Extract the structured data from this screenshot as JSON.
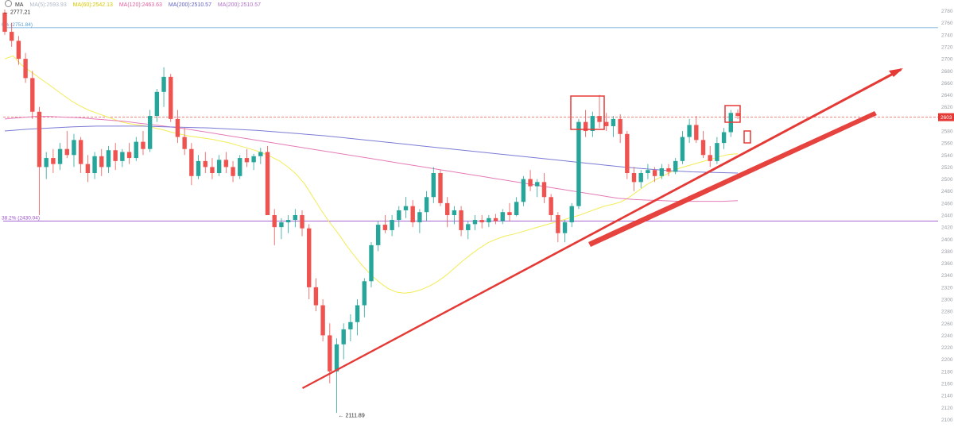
{
  "legend": {
    "indicator": "MA",
    "items": [
      {
        "text": "MA(5):2593.93",
        "color": "#b0b8c8"
      },
      {
        "text": "MA(60):2542.13",
        "color": "#f0e020"
      },
      {
        "text": "MA(120):2463.63",
        "color": "#e060a0"
      },
      {
        "text": "MA(200):2510.57",
        "color": "#6060c0"
      },
      {
        "text": "MA(200):2510.57",
        "color": "#b070c8"
      }
    ]
  },
  "colors": {
    "up": "#26a69a",
    "down": "#ef5350",
    "trendline": "#e53935",
    "ma_yellow": "#f2ec55",
    "ma_pink": "#e57bb8",
    "ma_purple": "#7b7bd6",
    "fib_top": "#5aa0d8",
    "fib_mid": "#9b4fcf",
    "current_price": "#e53935"
  },
  "chart_data": {
    "type": "candlestick",
    "ylim": [
      2090,
      2790
    ],
    "y_ticks": [
      2780,
      2760,
      2740,
      2720,
      2700,
      2680,
      2660,
      2640,
      2620,
      2600,
      2580,
      2560,
      2540,
      2520,
      2500,
      2480,
      2460,
      2440,
      2420,
      2400,
      2380,
      2360,
      2340,
      2320,
      2300,
      2280,
      2260,
      2240,
      2220,
      2200,
      2180,
      2160,
      2140,
      2120,
      2100
    ],
    "y_tick_labels": [
      "2780",
      "2760",
      "2740",
      "2720",
      "2700",
      "2680",
      "2660",
      "2640",
      "2620",
      "2600",
      "2580",
      "2560",
      "2540",
      "2520",
      "2500",
      "2480",
      "2460",
      "2440",
      "2420",
      "2400",
      "2380",
      "2360",
      "2340",
      "2320",
      "2300",
      "2280",
      "2260",
      "2240",
      "2220",
      "2200",
      "2180",
      "2160",
      "2140",
      "2120",
      "2100"
    ],
    "current_price": {
      "value": 2603,
      "label": "2603"
    },
    "high_marker": {
      "value": 2777.21,
      "label": "2777.21"
    },
    "low_marker": {
      "value": 2111.89,
      "label": "2111.89"
    },
    "fib_levels": [
      {
        "value": 2751.84,
        "label": "0% (2751.84)"
      },
      {
        "value": 2430.04,
        "label": "38.2% (2430.04)"
      }
    ],
    "candles": [
      [
        2777,
        2782,
        2740,
        2745
      ],
      [
        2745,
        2760,
        2720,
        2730
      ],
      [
        2730,
        2738,
        2690,
        2700
      ],
      [
        2700,
        2710,
        2660,
        2668
      ],
      [
        2668,
        2680,
        2600,
        2612
      ],
      [
        2612,
        2620,
        2440,
        2520
      ],
      [
        2520,
        2545,
        2500,
        2535
      ],
      [
        2535,
        2550,
        2510,
        2525
      ],
      [
        2525,
        2560,
        2515,
        2550
      ],
      [
        2550,
        2580,
        2535,
        2540
      ],
      [
        2540,
        2575,
        2520,
        2565
      ],
      [
        2565,
        2570,
        2510,
        2525
      ],
      [
        2525,
        2540,
        2495,
        2510
      ],
      [
        2510,
        2545,
        2500,
        2538
      ],
      [
        2538,
        2550,
        2505,
        2520
      ],
      [
        2520,
        2555,
        2510,
        2548
      ],
      [
        2548,
        2560,
        2515,
        2530
      ],
      [
        2530,
        2550,
        2520,
        2545
      ],
      [
        2545,
        2560,
        2525,
        2535
      ],
      [
        2535,
        2570,
        2530,
        2562
      ],
      [
        2562,
        2580,
        2540,
        2550
      ],
      [
        2550,
        2615,
        2545,
        2605
      ],
      [
        2605,
        2650,
        2595,
        2645
      ],
      [
        2645,
        2686,
        2620,
        2670
      ],
      [
        2670,
        2675,
        2595,
        2600
      ],
      [
        2600,
        2615,
        2560,
        2570
      ],
      [
        2570,
        2585,
        2540,
        2550
      ],
      [
        2550,
        2560,
        2490,
        2505
      ],
      [
        2505,
        2540,
        2500,
        2530
      ],
      [
        2530,
        2545,
        2510,
        2520
      ],
      [
        2520,
        2535,
        2500,
        2510
      ],
      [
        2510,
        2540,
        2505,
        2532
      ],
      [
        2532,
        2545,
        2510,
        2520
      ],
      [
        2520,
        2530,
        2495,
        2505
      ],
      [
        2505,
        2540,
        2500,
        2535
      ],
      [
        2535,
        2550,
        2520,
        2528
      ],
      [
        2528,
        2542,
        2515,
        2538
      ],
      [
        2538,
        2552,
        2525,
        2545
      ],
      [
        2545,
        2555,
        2440,
        2440
      ],
      [
        2440,
        2450,
        2390,
        2420
      ],
      [
        2420,
        2435,
        2400,
        2428
      ],
      [
        2428,
        2440,
        2410,
        2432
      ],
      [
        2432,
        2450,
        2420,
        2440
      ],
      [
        2440,
        2448,
        2405,
        2418
      ],
      [
        2418,
        2425,
        2300,
        2320
      ],
      [
        2320,
        2335,
        2280,
        2290
      ],
      [
        2290,
        2300,
        2230,
        2240
      ],
      [
        2240,
        2260,
        2160,
        2180
      ],
      [
        2180,
        2235,
        2111,
        2225
      ],
      [
        2225,
        2260,
        2200,
        2250
      ],
      [
        2250,
        2275,
        2230,
        2262
      ],
      [
        2262,
        2300,
        2240,
        2290
      ],
      [
        2290,
        2335,
        2270,
        2330
      ],
      [
        2330,
        2395,
        2320,
        2390
      ],
      [
        2390,
        2430,
        2380,
        2424
      ],
      [
        2424,
        2440,
        2410,
        2415
      ],
      [
        2415,
        2440,
        2405,
        2432
      ],
      [
        2432,
        2455,
        2420,
        2448
      ],
      [
        2448,
        2470,
        2435,
        2455
      ],
      [
        2455,
        2465,
        2420,
        2428
      ],
      [
        2428,
        2450,
        2410,
        2445
      ],
      [
        2445,
        2480,
        2430,
        2470
      ],
      [
        2470,
        2520,
        2460,
        2510
      ],
      [
        2510,
        2515,
        2455,
        2460
      ],
      [
        2460,
        2470,
        2420,
        2440
      ],
      [
        2440,
        2455,
        2425,
        2448
      ],
      [
        2448,
        2455,
        2405,
        2415
      ],
      [
        2415,
        2430,
        2400,
        2425
      ],
      [
        2425,
        2440,
        2415,
        2432
      ],
      [
        2432,
        2440,
        2418,
        2428
      ],
      [
        2428,
        2440,
        2420,
        2435
      ],
      [
        2435,
        2442,
        2425,
        2430
      ],
      [
        2430,
        2450,
        2425,
        2445
      ],
      [
        2445,
        2460,
        2430,
        2440
      ],
      [
        2440,
        2470,
        2438,
        2462
      ],
      [
        2462,
        2505,
        2455,
        2500
      ],
      [
        2500,
        2515,
        2480,
        2488
      ],
      [
        2488,
        2500,
        2470,
        2495
      ],
      [
        2495,
        2510,
        2460,
        2470
      ],
      [
        2470,
        2475,
        2430,
        2440
      ],
      [
        2440,
        2445,
        2395,
        2410
      ],
      [
        2410,
        2432,
        2395,
        2428
      ],
      [
        2428,
        2460,
        2420,
        2455
      ],
      [
        2455,
        2600,
        2450,
        2595
      ],
      [
        2595,
        2615,
        2570,
        2580
      ],
      [
        2580,
        2612,
        2570,
        2605
      ],
      [
        2605,
        2640,
        2585,
        2595
      ],
      [
        2595,
        2610,
        2580,
        2588
      ],
      [
        2588,
        2605,
        2570,
        2600
      ],
      [
        2600,
        2608,
        2560,
        2575
      ],
      [
        2575,
        2580,
        2500,
        2510
      ],
      [
        2510,
        2520,
        2480,
        2495
      ],
      [
        2495,
        2515,
        2485,
        2510
      ],
      [
        2510,
        2525,
        2500,
        2515
      ],
      [
        2515,
        2520,
        2495,
        2505
      ],
      [
        2505,
        2525,
        2500,
        2518
      ],
      [
        2518,
        2525,
        2505,
        2512
      ],
      [
        2512,
        2535,
        2508,
        2530
      ],
      [
        2530,
        2580,
        2525,
        2570
      ],
      [
        2570,
        2600,
        2560,
        2590
      ],
      [
        2590,
        2605,
        2560,
        2565
      ],
      [
        2565,
        2580,
        2535,
        2540
      ],
      [
        2540,
        2555,
        2520,
        2530
      ],
      [
        2530,
        2570,
        2525,
        2560
      ],
      [
        2560,
        2585,
        2550,
        2578
      ],
      [
        2578,
        2615,
        2570,
        2610
      ],
      [
        2610,
        2616,
        2600,
        2605
      ]
    ],
    "moving_averages": [
      {
        "name": "MA(60)",
        "values": [
          2700,
          2705,
          2690,
          2680,
          2670,
          2660,
          2650,
          2640,
          2630,
          2622,
          2615,
          2610,
          2605,
          2600,
          2595,
          2592,
          2590,
          2588,
          2585,
          2582,
          2578,
          2575,
          2572,
          2570,
          2568,
          2566,
          2563,
          2560,
          2556,
          2552,
          2548,
          2543,
          2537,
          2530,
          2520,
          2508,
          2492,
          2470,
          2448,
          2428,
          2410,
          2390,
          2372,
          2355,
          2340,
          2328,
          2318,
          2312,
          2310,
          2312,
          2316,
          2322,
          2330,
          2340,
          2352,
          2364,
          2375,
          2385,
          2394,
          2400,
          2405,
          2408,
          2412,
          2416,
          2420,
          2424,
          2428,
          2432,
          2436,
          2440,
          2445,
          2450,
          2455,
          2458,
          2462,
          2470,
          2480,
          2490,
          2498,
          2505,
          2512,
          2518,
          2522,
          2526,
          2530,
          2534,
          2538,
          2541,
          2542
        ]
      },
      {
        "name": "MA(120)",
        "values": [
          2600,
          2602,
          2604,
          2604,
          2603,
          2602,
          2600,
          2598,
          2596,
          2593,
          2590,
          2587,
          2584,
          2580,
          2576,
          2572,
          2568,
          2564,
          2560,
          2556,
          2552,
          2548,
          2544,
          2540,
          2536,
          2532,
          2528,
          2524,
          2520,
          2516,
          2512,
          2508,
          2504,
          2500,
          2496,
          2492,
          2488,
          2484,
          2480,
          2476,
          2472,
          2468,
          2466,
          2465,
          2464,
          2463,
          2463,
          2463,
          2463,
          2464
        ]
      },
      {
        "name": "MA(200)",
        "values": [
          2580,
          2583,
          2585,
          2587,
          2588,
          2588,
          2588,
          2587,
          2586,
          2585,
          2583,
          2581,
          2578,
          2575,
          2572,
          2568,
          2564,
          2560,
          2556,
          2552,
          2548,
          2544,
          2540,
          2536,
          2532,
          2528,
          2524,
          2520,
          2517,
          2514,
          2512,
          2511,
          2510
        ]
      }
    ]
  }
}
